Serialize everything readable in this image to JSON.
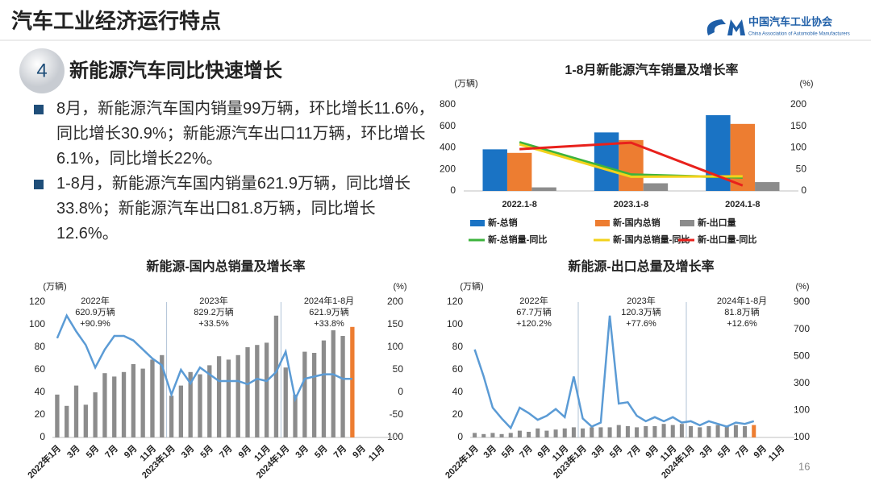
{
  "header": {
    "title": "汽车工业经济运行特点",
    "logo_cn": "中国汽车工业协会",
    "logo_en": "China Association of Automobile Manufacturers"
  },
  "section": {
    "number": "4",
    "title": "新能源汽车同比快速增长"
  },
  "bullets": [
    "8月，新能源汽车国内销量99万辆，环比增长11.6%，同比增长30.9%；新能源汽车出口11万辆，环比增长6.1%，同比增长22%。",
    "1-8月，新能源汽车国内销量621.9万辆，同比增长33.8%；新能源汽车出口81.8万辆，同比增长12.6%。"
  ],
  "page_number": "16",
  "chart_data": [
    {
      "type": "bar",
      "title": "1-8月新能源汽车销量及增长率",
      "y_unit": "(万辆)",
      "y2_unit": "(%)",
      "categories": [
        "2022.1-8",
        "2023.1-8",
        "2024.1-8"
      ],
      "series": [
        {
          "name": "新-总销",
          "type": "bar",
          "color": "#1a73c4",
          "values": [
            386,
            543,
            703
          ]
        },
        {
          "name": "新-国内总销",
          "type": "bar",
          "color": "#ed7d31",
          "values": [
            353,
            472,
            621.9
          ]
        },
        {
          "name": "新-出口量",
          "type": "bar",
          "color": "#8c8c8c",
          "values": [
            33,
            71,
            81.8
          ]
        },
        {
          "name": "新-总销量-同比",
          "type": "line",
          "axis": "y2",
          "color": "#3cb33c",
          "values": [
            113,
            38,
            31
          ]
        },
        {
          "name": "新-国内总销量-同比",
          "type": "line",
          "axis": "y2",
          "color": "#f2d21b",
          "values": [
            108,
            33,
            33.8
          ]
        },
        {
          "name": "新-出口量-同比",
          "type": "line",
          "axis": "y2",
          "color": "#e8211c",
          "values": [
            97,
            112,
            12.6
          ]
        }
      ],
      "ylim": [
        0,
        800
      ],
      "yticks": [
        0,
        200,
        400,
        600,
        800
      ],
      "y2lim": [
        0,
        200
      ],
      "y2ticks": [
        0,
        50,
        100,
        150,
        200
      ]
    },
    {
      "type": "bar",
      "title": "新能源-国内总销量及增长率",
      "y_unit": "(万辆)",
      "y2_unit": "(%)",
      "categories": [
        "2022年1月",
        null,
        "3月",
        null,
        "5月",
        null,
        "7月",
        null,
        "9月",
        null,
        "11月",
        null,
        "2023年1月",
        null,
        "3月",
        null,
        "5月",
        null,
        "7月",
        null,
        "9月",
        null,
        "11月",
        null,
        "2024年1月",
        null,
        "3月",
        null,
        "5月",
        null,
        "7月",
        null,
        "9月",
        null,
        "11月",
        null
      ],
      "series": [
        {
          "type": "bar",
          "color": "#8c8c8c",
          "values": [
            38,
            28,
            46,
            29,
            40,
            57,
            54,
            58,
            65,
            61,
            69,
            73,
            37,
            46,
            58,
            56,
            64,
            72,
            69,
            73,
            80,
            82,
            84,
            108,
            62,
            38,
            76,
            75,
            86,
            95,
            90,
            98,
            null,
            null,
            null,
            null
          ],
          "colors": [
            "#8c8c8c",
            "#8c8c8c",
            "#8c8c8c",
            "#8c8c8c",
            "#8c8c8c",
            "#8c8c8c",
            "#8c8c8c",
            "#8c8c8c",
            "#8c8c8c",
            "#8c8c8c",
            "#8c8c8c",
            "#8c8c8c",
            "#8c8c8c",
            "#8c8c8c",
            "#8c8c8c",
            "#8c8c8c",
            "#8c8c8c",
            "#8c8c8c",
            "#8c8c8c",
            "#8c8c8c",
            "#8c8c8c",
            "#8c8c8c",
            "#8c8c8c",
            "#8c8c8c",
            "#8c8c8c",
            "#8c8c8c",
            "#8c8c8c",
            "#8c8c8c",
            "#8c8c8c",
            "#8c8c8c",
            "#8c8c8c",
            "#ed7d31",
            null,
            null,
            null,
            null
          ]
        },
        {
          "type": "line",
          "axis": "y2",
          "color": "#5b9bd5",
          "values": [
            120,
            170,
            135,
            105,
            55,
            95,
            125,
            125,
            115,
            95,
            75,
            60,
            -5,
            50,
            20,
            55,
            40,
            25,
            25,
            25,
            18,
            30,
            25,
            45,
            90,
            -15,
            30,
            35,
            40,
            40,
            30,
            30,
            null,
            null,
            null,
            null
          ]
        }
      ],
      "annotations": [
        [
          "2022年",
          "620.9万辆",
          "+90.9%"
        ],
        [
          "2023年",
          "829.2万辆",
          "+33.5%"
        ],
        [
          "2024年1-8月",
          "621.9万辆",
          "+33.8%"
        ]
      ],
      "ylim": [
        0,
        120
      ],
      "yticks": [
        0,
        20,
        40,
        60,
        80,
        100,
        120
      ],
      "y2lim": [
        -100,
        200
      ],
      "y2ticks": [
        -100,
        -50,
        0,
        50,
        100,
        150,
        200
      ]
    },
    {
      "type": "bar",
      "title": "新能源-出口总量及增长率",
      "y_unit": "(万辆)",
      "y2_unit": "(%)",
      "categories": [
        "2022年1月",
        null,
        "3月",
        null,
        "5月",
        null,
        "7月",
        null,
        "9月",
        null,
        "11月",
        null,
        "2023年1月",
        null,
        "3月",
        null,
        "5月",
        null,
        "7月",
        null,
        "9月",
        null,
        "11月",
        null,
        "2024年1月",
        null,
        "3月",
        null,
        "5月",
        null,
        "7月",
        null,
        "9月",
        null,
        "11月",
        null
      ],
      "series": [
        {
          "type": "bar",
          "color": "#8c8c8c",
          "values": [
            4,
            3,
            4,
            3,
            4,
            6,
            5,
            8,
            6,
            7,
            8,
            9,
            8,
            9,
            9,
            9,
            11,
            10,
            9,
            10,
            10,
            12,
            11,
            12,
            10,
            9,
            10,
            11,
            10,
            11,
            10,
            11,
            null,
            null,
            null,
            null
          ],
          "colors": [
            "#8c8c8c",
            "#8c8c8c",
            "#8c8c8c",
            "#8c8c8c",
            "#8c8c8c",
            "#8c8c8c",
            "#8c8c8c",
            "#8c8c8c",
            "#8c8c8c",
            "#8c8c8c",
            "#8c8c8c",
            "#8c8c8c",
            "#8c8c8c",
            "#8c8c8c",
            "#8c8c8c",
            "#8c8c8c",
            "#8c8c8c",
            "#8c8c8c",
            "#8c8c8c",
            "#8c8c8c",
            "#8c8c8c",
            "#8c8c8c",
            "#8c8c8c",
            "#8c8c8c",
            "#8c8c8c",
            "#8c8c8c",
            "#8c8c8c",
            "#8c8c8c",
            "#8c8c8c",
            "#8c8c8c",
            "#8c8c8c",
            "#ed7d31",
            null,
            null,
            null,
            null
          ]
        },
        {
          "type": "line",
          "axis": "y2",
          "color": "#5b9bd5",
          "values": [
            550,
            350,
            120,
            40,
            -30,
            120,
            80,
            30,
            60,
            110,
            50,
            350,
            40,
            -20,
            10,
            800,
            150,
            160,
            60,
            20,
            50,
            20,
            50,
            10,
            20,
            -10,
            20,
            0,
            -20,
            10,
            0,
            20,
            null,
            null,
            null,
            null
          ]
        }
      ],
      "annotations": [
        [
          "2022年",
          "67.7万辆",
          "+120.2%"
        ],
        [
          "2023年",
          "120.3万辆",
          "+77.6%"
        ],
        [
          "2024年1-8月",
          "81.8万辆",
          "+12.6%"
        ]
      ],
      "ylim": [
        0,
        120
      ],
      "yticks": [
        0,
        20,
        40,
        60,
        80,
        100,
        120
      ],
      "y2lim": [
        -100,
        900
      ],
      "y2ticks": [
        -100,
        100,
        300,
        500,
        700,
        900
      ]
    }
  ]
}
